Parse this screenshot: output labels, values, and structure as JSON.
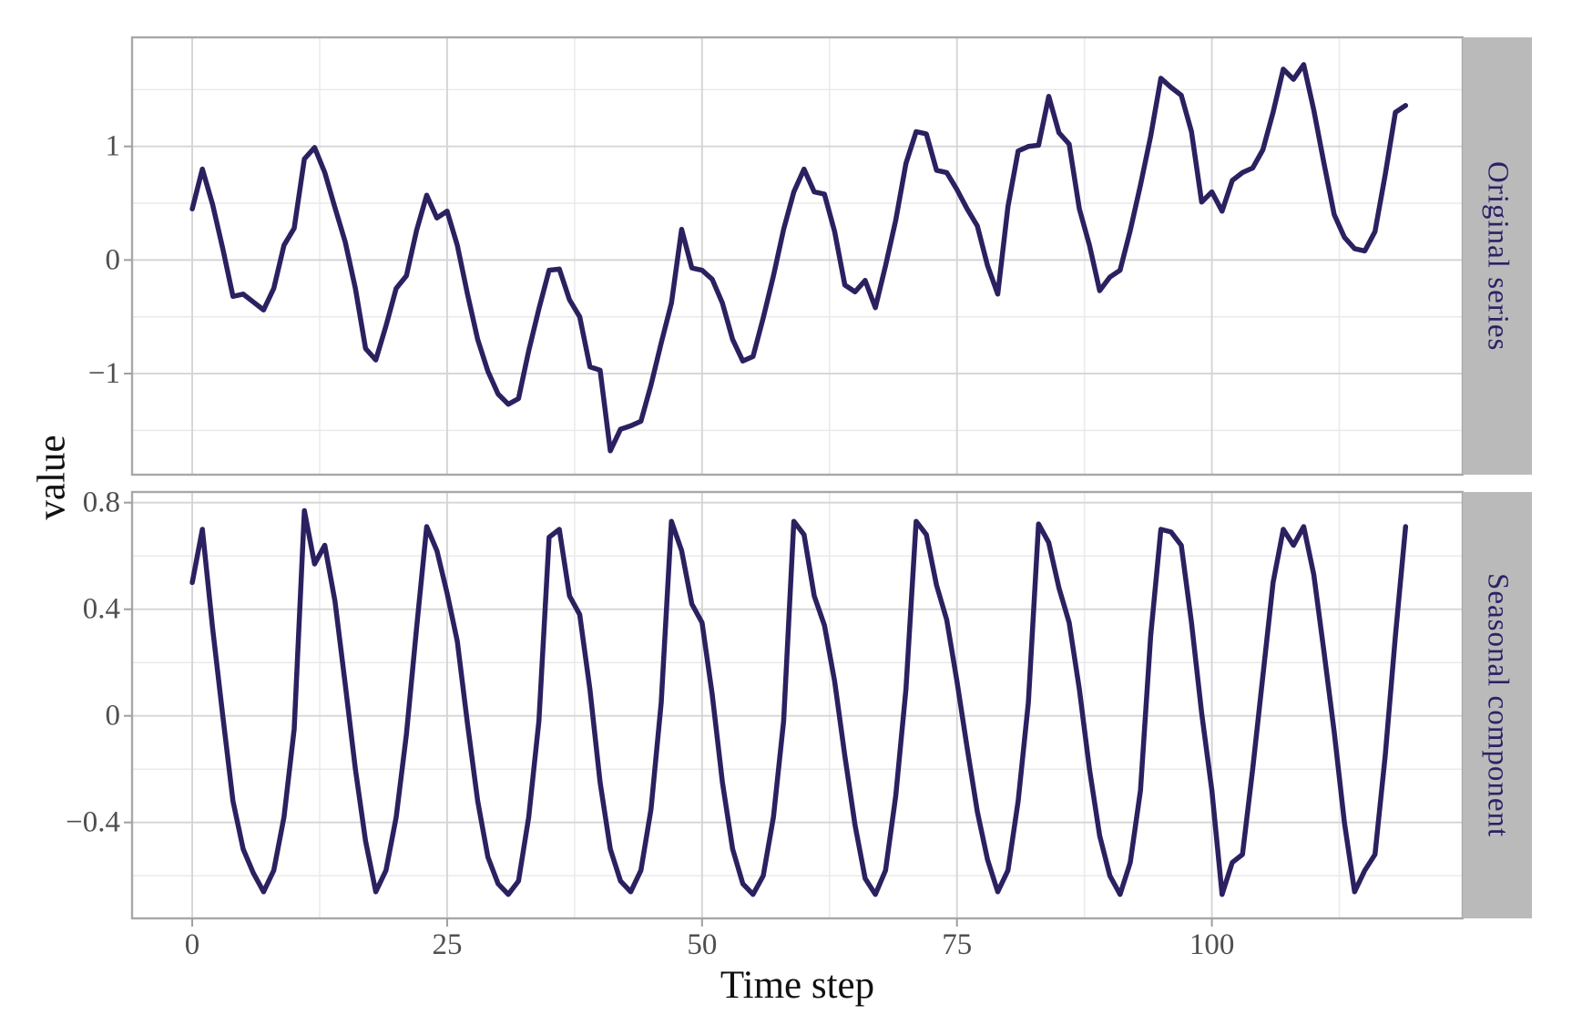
{
  "axes": {
    "x_title": "Time step",
    "y_title": "value"
  },
  "facets": [
    {
      "label": "Original series"
    },
    {
      "label": "Seasonal component"
    }
  ],
  "colors": {
    "background": "#ffffff",
    "line": "#2c2060",
    "strip_bg": "#bababa",
    "strip_text": "#2d2166",
    "grid_major": "#d5d5d5",
    "grid_minor": "#eaeaea",
    "panel_border": "#a8a8a8",
    "tick_mark": "#9e9e9e",
    "tick_label": "#4f4f4f",
    "axis_title": "#111111"
  },
  "chart_data": {
    "type": "line",
    "xlabel": "Time step",
    "ylabel": "value",
    "legend": "none",
    "grid": true,
    "layout": "two stacked facet panels sharing x axis, facet strips on right",
    "xlim": [
      -5.9,
      124.6
    ],
    "x_ticks": [
      0,
      25,
      50,
      75,
      100
    ],
    "x_tick_labels": [
      "0",
      "25",
      "50",
      "75",
      "100"
    ],
    "x_minor_ticks": [
      12.5,
      37.5,
      62.5,
      87.5,
      112.5
    ],
    "x": [
      0,
      1,
      2,
      3,
      4,
      5,
      6,
      7,
      8,
      9,
      10,
      11,
      12,
      13,
      14,
      15,
      16,
      17,
      18,
      19,
      20,
      21,
      22,
      23,
      24,
      25,
      26,
      27,
      28,
      29,
      30,
      31,
      32,
      33,
      34,
      35,
      36,
      37,
      38,
      39,
      40,
      41,
      42,
      43,
      44,
      45,
      46,
      47,
      48,
      49,
      50,
      51,
      52,
      53,
      54,
      55,
      56,
      57,
      58,
      59,
      60,
      61,
      62,
      63,
      64,
      65,
      66,
      67,
      68,
      69,
      70,
      71,
      72,
      73,
      74,
      75,
      76,
      77,
      78,
      79,
      80,
      81,
      82,
      83,
      84,
      85,
      86,
      87,
      88,
      89,
      90,
      91,
      92,
      93,
      94,
      95,
      96,
      97,
      98,
      99,
      100,
      101,
      102,
      103,
      104,
      105,
      106,
      107,
      108,
      109,
      110,
      111,
      112,
      113,
      114,
      115,
      116,
      117,
      118,
      119
    ],
    "series": [
      {
        "name": "Original series",
        "ylim": [
          -1.89,
          1.96
        ],
        "y_ticks": [
          1,
          0,
          -1
        ],
        "y_tick_labels": [
          "1",
          "0",
          "−1"
        ],
        "y_minor_ticks": [
          1.5,
          0.5,
          -0.5,
          -1.5
        ],
        "values": [
          0.45,
          0.8,
          0.49,
          0.1,
          -0.32,
          -0.3,
          -0.37,
          -0.44,
          -0.25,
          0.13,
          0.28,
          0.89,
          0.99,
          0.77,
          0.46,
          0.16,
          -0.25,
          -0.78,
          -0.88,
          -0.58,
          -0.25,
          -0.14,
          0.26,
          0.57,
          0.37,
          0.43,
          0.13,
          -0.3,
          -0.7,
          -0.98,
          -1.18,
          -1.27,
          -1.22,
          -0.8,
          -0.43,
          -0.09,
          -0.08,
          -0.35,
          -0.5,
          -0.94,
          -0.97,
          -1.68,
          -1.49,
          -1.46,
          -1.42,
          -1.1,
          -0.73,
          -0.38,
          0.27,
          -0.07,
          -0.09,
          -0.17,
          -0.38,
          -0.7,
          -0.89,
          -0.85,
          -0.51,
          -0.14,
          0.27,
          0.6,
          0.8,
          0.6,
          0.58,
          0.25,
          -0.22,
          -0.28,
          -0.18,
          -0.42,
          -0.05,
          0.35,
          0.85,
          1.13,
          1.11,
          0.79,
          0.77,
          0.62,
          0.45,
          0.3,
          -0.05,
          -0.3,
          0.47,
          0.96,
          1.0,
          1.01,
          1.44,
          1.12,
          1.02,
          0.45,
          0.13,
          -0.27,
          -0.15,
          -0.09,
          0.26,
          0.66,
          1.09,
          1.6,
          1.52,
          1.45,
          1.13,
          0.51,
          0.6,
          0.43,
          0.7,
          0.77,
          0.81,
          0.97,
          1.3,
          1.68,
          1.59,
          1.72,
          1.32,
          0.85,
          0.4,
          0.2,
          0.1,
          0.08,
          0.25,
          0.75,
          1.3,
          1.36
        ]
      },
      {
        "name": "Seasonal component",
        "ylim": [
          -0.76,
          0.84
        ],
        "y_ticks": [
          0.8,
          0.4,
          0,
          -0.4
        ],
        "y_tick_labels": [
          "0.8",
          "0.4",
          "0",
          "−0.4"
        ],
        "y_minor_ticks": [
          0.6,
          0.2,
          -0.2,
          -0.6
        ],
        "values": [
          0.5,
          0.7,
          0.33,
          0.0,
          -0.32,
          -0.5,
          -0.59,
          -0.66,
          -0.58,
          -0.38,
          -0.05,
          0.77,
          0.57,
          0.64,
          0.43,
          0.12,
          -0.2,
          -0.47,
          -0.66,
          -0.58,
          -0.38,
          -0.07,
          0.33,
          0.71,
          0.62,
          0.46,
          0.28,
          -0.03,
          -0.32,
          -0.53,
          -0.63,
          -0.67,
          -0.62,
          -0.38,
          -0.02,
          0.67,
          0.7,
          0.45,
          0.38,
          0.1,
          -0.25,
          -0.5,
          -0.62,
          -0.66,
          -0.58,
          -0.35,
          0.05,
          0.73,
          0.62,
          0.42,
          0.35,
          0.08,
          -0.25,
          -0.5,
          -0.63,
          -0.67,
          -0.6,
          -0.38,
          -0.02,
          0.73,
          0.68,
          0.45,
          0.34,
          0.13,
          -0.15,
          -0.41,
          -0.61,
          -0.67,
          -0.58,
          -0.3,
          0.1,
          0.73,
          0.68,
          0.49,
          0.36,
          0.13,
          -0.12,
          -0.36,
          -0.54,
          -0.66,
          -0.58,
          -0.32,
          0.05,
          0.72,
          0.65,
          0.48,
          0.35,
          0.1,
          -0.2,
          -0.45,
          -0.6,
          -0.67,
          -0.55,
          -0.28,
          0.3,
          0.7,
          0.69,
          0.64,
          0.35,
          0.01,
          -0.28,
          -0.67,
          -0.55,
          -0.52,
          -0.2,
          0.15,
          0.5,
          0.7,
          0.64,
          0.71,
          0.53,
          0.24,
          -0.06,
          -0.4,
          -0.66,
          -0.58,
          -0.52,
          -0.15,
          0.3,
          0.71
        ]
      }
    ]
  }
}
